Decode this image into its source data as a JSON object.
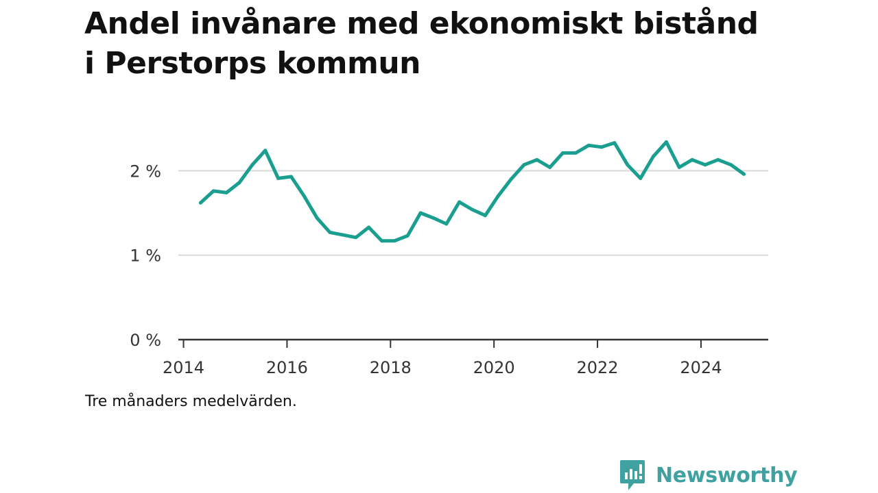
{
  "title": "Andel invånare med ekonomiskt bistånd i Perstorps kommun",
  "footnote": "Tre månaders medelvärden.",
  "brand": {
    "name": "Newsworthy",
    "icon": "newsworthy-logo-icon",
    "color": "#3fa2a0"
  },
  "colors": {
    "line": "#1a9e8f",
    "grid": "#d9d9d9",
    "axis": "#333333"
  },
  "chart_data": {
    "type": "line",
    "title": "Andel invånare med ekonomiskt bistånd i Perstorps kommun",
    "xlabel": "",
    "ylabel": "",
    "xlim": [
      2013.9,
      2025.3
    ],
    "ylim": [
      0,
      2.7
    ],
    "x_ticks": [
      2014,
      2016,
      2018,
      2020,
      2022,
      2024
    ],
    "x_tick_labels": [
      "2014",
      "2016",
      "2018",
      "2020",
      "2022",
      "2024"
    ],
    "y_ticks": [
      0,
      1,
      2
    ],
    "y_tick_labels": [
      "0 %",
      "1 %",
      "2 %"
    ],
    "grid": true,
    "legend": "none",
    "series": [
      {
        "x": [
          2014.33,
          2014.58,
          2014.83,
          2015.08,
          2015.33,
          2015.58,
          2015.83,
          2016.08,
          2016.33,
          2016.58,
          2016.83,
          2017.08,
          2017.33,
          2017.58,
          2017.83,
          2018.08,
          2018.33,
          2018.58,
          2018.83,
          2019.08,
          2019.33,
          2019.58,
          2019.83,
          2020.08,
          2020.33,
          2020.58,
          2020.83,
          2021.08,
          2021.33,
          2021.58,
          2021.83,
          2022.08,
          2022.33,
          2022.58,
          2022.83,
          2023.08,
          2023.33,
          2023.58,
          2023.83,
          2024.08,
          2024.33,
          2024.58,
          2024.83
        ],
        "values": [
          1.62,
          1.76,
          1.74,
          1.86,
          2.07,
          2.24,
          1.91,
          1.93,
          1.7,
          1.44,
          1.27,
          1.24,
          1.21,
          1.33,
          1.17,
          1.17,
          1.23,
          1.5,
          1.44,
          1.37,
          1.63,
          1.54,
          1.47,
          1.7,
          1.9,
          2.07,
          2.13,
          2.04,
          2.21,
          2.21,
          2.3,
          2.28,
          2.33,
          2.07,
          1.91,
          2.17,
          2.34,
          2.04,
          2.13,
          2.07,
          2.13,
          2.07,
          1.96
        ]
      }
    ]
  }
}
